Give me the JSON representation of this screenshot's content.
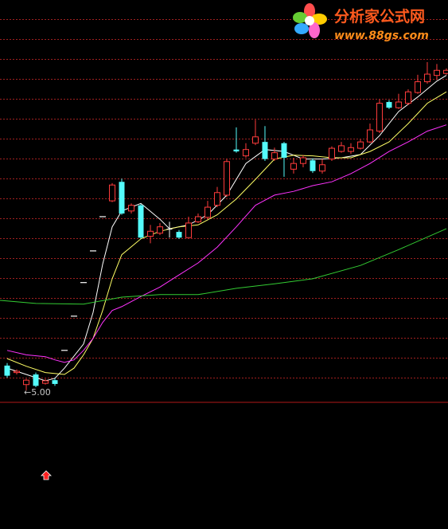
{
  "watermark": {
    "title": "分析家公式网",
    "url": "www.88gs.com"
  },
  "chart_data": {
    "type": "candlestick",
    "xlim": [
      -0.75,
      46.17
    ],
    "ylim": [
      4.81,
      11.16
    ],
    "grid": true,
    "up_color": "#ff3c3c",
    "down_color": "#54fcfc",
    "flat_color": "#ffffff",
    "open": [
      5.39,
      5.28,
      5.09,
      5.25,
      5.11,
      5.16,
      5.63,
      6.17,
      6.7,
      7.2,
      7.74,
      7.99,
      8.29,
      7.83,
      7.92,
      7.43,
      7.48,
      7.55,
      7.5,
      7.41,
      7.66,
      7.73,
      7.92,
      8.08,
      8.8,
      8.7,
      8.9,
      8.92,
      8.65,
      8.9,
      8.49,
      8.58,
      8.63,
      8.46,
      8.65,
      8.77,
      8.77,
      8.82,
      8.92,
      9.09,
      9.55,
      9.46,
      9.53,
      9.7,
      9.87,
      9.97,
      10.0
    ],
    "high": [
      5.43,
      5.33,
      5.18,
      5.28,
      5.18,
      5.19,
      5.63,
      6.17,
      6.7,
      7.2,
      7.74,
      8.27,
      8.34,
      7.95,
      7.94,
      7.61,
      7.64,
      7.66,
      7.53,
      7.74,
      7.79,
      7.99,
      8.21,
      8.65,
      9.15,
      8.9,
      9.27,
      9.17,
      8.83,
      8.92,
      8.67,
      8.71,
      8.66,
      8.65,
      8.85,
      8.92,
      8.9,
      8.96,
      9.21,
      9.59,
      9.58,
      9.68,
      9.75,
      9.98,
      10.18,
      10.15,
      10.08
    ],
    "low": [
      5.2,
      5.25,
      5.0,
      5.05,
      5.09,
      5.07,
      5.63,
      6.17,
      6.7,
      7.2,
      7.74,
      7.97,
      7.77,
      7.79,
      7.39,
      7.32,
      7.45,
      7.41,
      7.39,
      7.41,
      7.64,
      7.7,
      7.89,
      8.05,
      8.75,
      8.67,
      8.87,
      8.62,
      8.62,
      8.37,
      8.42,
      8.52,
      8.43,
      8.42,
      8.62,
      8.75,
      8.73,
      8.8,
      8.9,
      9.06,
      9.44,
      9.44,
      9.5,
      9.68,
      9.84,
      9.9,
      9.98
    ],
    "close": [
      5.23,
      5.3,
      5.16,
      5.07,
      5.15,
      5.1,
      5.63,
      6.17,
      6.7,
      7.2,
      7.74,
      8.24,
      7.79,
      7.92,
      7.41,
      7.51,
      7.58,
      7.55,
      7.41,
      7.64,
      7.74,
      7.89,
      8.12,
      8.61,
      8.77,
      8.8,
      9.0,
      8.65,
      8.75,
      8.67,
      8.58,
      8.67,
      8.46,
      8.56,
      8.82,
      8.86,
      8.83,
      8.92,
      9.11,
      9.53,
      9.46,
      9.55,
      9.71,
      9.87,
      9.99,
      10.05,
      10.05
    ],
    "lines": [
      {
        "color": "#ffffff",
        "x": [
          0,
          2,
          4,
          5,
          6,
          8,
          9,
          10,
          11,
          12,
          14,
          16,
          17,
          19,
          21,
          23,
          25,
          27,
          29,
          31,
          33,
          35,
          37,
          39,
          41,
          43,
          45,
          46
        ],
        "values": [
          5.35,
          5.25,
          5.15,
          5.19,
          5.35,
          5.73,
          6.23,
          6.99,
          7.58,
          7.83,
          7.95,
          7.7,
          7.55,
          7.61,
          7.77,
          8.08,
          8.58,
          8.8,
          8.77,
          8.65,
          8.65,
          8.67,
          8.72,
          9.02,
          9.4,
          9.63,
          9.88,
          9.97
        ]
      },
      {
        "color": "#ffff66",
        "x": [
          0,
          2,
          4,
          6,
          7,
          8,
          9,
          10,
          11,
          12,
          14,
          16,
          18,
          20,
          22,
          24,
          26,
          28,
          30,
          32,
          34,
          36,
          38,
          40,
          42,
          44,
          46
        ],
        "values": [
          5.5,
          5.38,
          5.28,
          5.25,
          5.35,
          5.56,
          5.82,
          6.26,
          6.76,
          7.14,
          7.39,
          7.51,
          7.58,
          7.61,
          7.77,
          8.02,
          8.33,
          8.65,
          8.71,
          8.7,
          8.67,
          8.67,
          8.77,
          8.92,
          9.21,
          9.53,
          9.71
        ]
      },
      {
        "color": "#ff33ff",
        "x": [
          0,
          2,
          4,
          5,
          6,
          7,
          8,
          9,
          10,
          11,
          12,
          14,
          16,
          18,
          20,
          22,
          24,
          26,
          28,
          30,
          32,
          34,
          36,
          38,
          40,
          42,
          44,
          46
        ],
        "values": [
          5.63,
          5.56,
          5.53,
          5.48,
          5.44,
          5.48,
          5.63,
          5.82,
          6.07,
          6.26,
          6.32,
          6.48,
          6.63,
          6.82,
          7.01,
          7.26,
          7.58,
          7.92,
          8.08,
          8.14,
          8.23,
          8.29,
          8.42,
          8.58,
          8.77,
          8.92,
          9.09,
          9.19
        ]
      },
      {
        "color": "#33cc33",
        "x": [
          -0.75,
          3,
          8,
          12,
          16,
          20,
          24,
          28,
          32,
          37,
          41,
          46
        ],
        "values": [
          6.42,
          6.37,
          6.36,
          6.47,
          6.51,
          6.51,
          6.61,
          6.68,
          6.76,
          6.97,
          7.22,
          7.55
        ]
      }
    ],
    "annotations": [
      {
        "label": "←5.00",
        "value": 5.0,
        "x": 2
      }
    ]
  }
}
